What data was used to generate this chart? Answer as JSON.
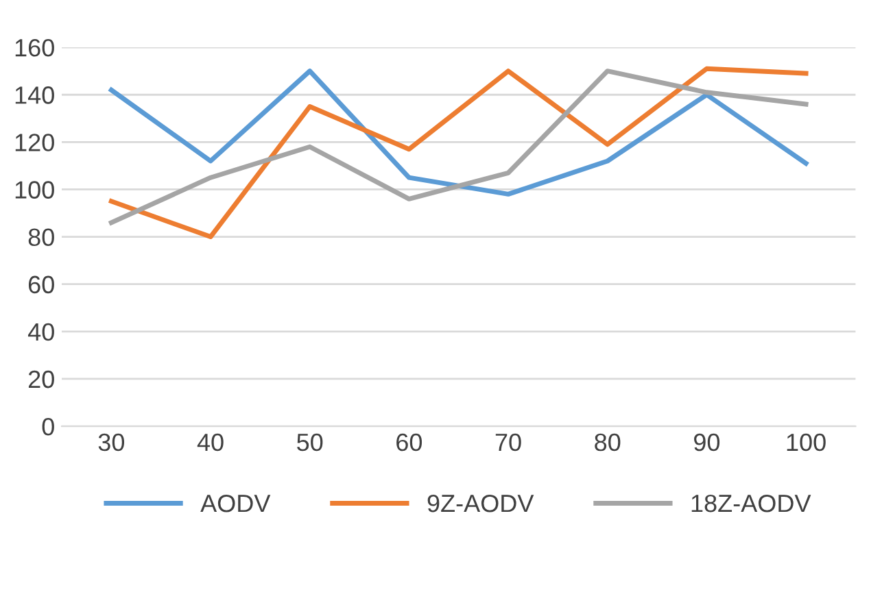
{
  "chart_data": {
    "type": "line",
    "categories": [
      "30",
      "40",
      "50",
      "60",
      "70",
      "80",
      "90",
      "100"
    ],
    "series": [
      {
        "name": "AODV",
        "color": "#5b9bd5",
        "values": [
          142,
          112,
          150,
          105,
          98,
          112,
          140,
          111
        ]
      },
      {
        "name": "9Z-AODV",
        "color": "#ed7d31",
        "values": [
          95,
          80,
          135,
          117,
          150,
          119,
          151,
          149
        ]
      },
      {
        "name": "18Z-AODV",
        "color": "#a5a5a5",
        "values": [
          86,
          105,
          118,
          96,
          107,
          150,
          141,
          136
        ]
      }
    ],
    "ylim": [
      0,
      160
    ],
    "yticks": [
      0,
      20,
      40,
      60,
      80,
      100,
      120,
      140,
      160
    ],
    "grid": "y",
    "legend": "bottom",
    "line_style": "solid",
    "marker": "none"
  }
}
